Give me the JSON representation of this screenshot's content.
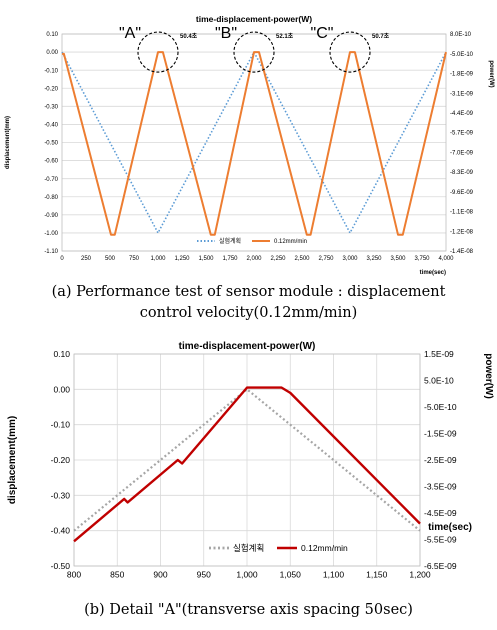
{
  "chart_data": [
    {
      "type": "line",
      "title": "time-displacement-power(W)",
      "xlabel": "time(sec)",
      "ylabel": "displacement(mm)",
      "y2label": "power(W)",
      "xlim": [
        0,
        4000
      ],
      "ylim": [
        -1.1,
        0.1
      ],
      "y2lim": [
        -1.4e-08,
        8e-10
      ],
      "x_ticks": [
        "0",
        "250",
        "500",
        "750",
        "1,000",
        "1,250",
        "1,500",
        "1,750",
        "2,000",
        "2,250",
        "2,500",
        "2,750",
        "3,000",
        "3,250",
        "3,500",
        "3,750",
        "4,000"
      ],
      "y_ticks": [
        "0.10",
        "0.00",
        "-0.10",
        "-0.20",
        "-0.30",
        "-0.40",
        "-0.50",
        "-0.60",
        "-0.70",
        "-0.80",
        "-0.90",
        "-1.00",
        "-1.10"
      ],
      "y2_ticks": [
        "8.0E-10",
        "-5.0E-10",
        "-1.8E-09",
        "-3.1E-09",
        "-4.4E-09",
        "-5.7E-09",
        "-7.0E-09",
        "-8.3E-09",
        "-9.6E-09",
        "-1.1E-08",
        "-1.2E-08",
        "-1.4E-08"
      ],
      "grid": true,
      "legend_position": "bottom-center",
      "series": [
        {
          "name": "실험계획",
          "style": "dotted",
          "color": "#5b9bd5",
          "x": [
            0,
            1000,
            2000,
            3000,
            4000
          ],
          "y": [
            0.0,
            -1.0,
            0.0,
            -1.0,
            0.0
          ]
        },
        {
          "name": "0.12mm/min",
          "style": "solid",
          "color": "#ed7d31",
          "x": [
            0,
            20,
            510,
            550,
            1000,
            1051,
            1550,
            1592,
            2000,
            2052,
            2550,
            2590,
            3000,
            3051,
            3500,
            3550,
            4000
          ],
          "y": [
            -0.01,
            -0.01,
            -1.01,
            -1.01,
            0.0,
            0.0,
            -1.01,
            -1.01,
            0.0,
            0.0,
            -1.01,
            -1.01,
            0.0,
            0.0,
            -1.01,
            -1.01,
            0.0
          ]
        }
      ],
      "annotations": [
        {
          "label": "\"A\"",
          "note": "50.4초",
          "x": 1000,
          "y": 0.0
        },
        {
          "label": "\"B\"",
          "note": "52.1초",
          "x": 2000,
          "y": 0.0
        },
        {
          "label": "\"C\"",
          "note": "50.7초",
          "x": 3000,
          "y": 0.0
        }
      ]
    },
    {
      "type": "line",
      "title": "time-displacement-power(W)",
      "xlabel": "time(sec)",
      "ylabel": "displacement(mm)",
      "y2label": "power(W)",
      "xlim": [
        800,
        1200
      ],
      "ylim": [
        -0.5,
        0.1
      ],
      "y2lim": [
        -6.5e-09,
        1.5e-09
      ],
      "x_ticks": [
        "800",
        "850",
        "900",
        "950",
        "1,000",
        "1,050",
        "1,100",
        "1,150",
        "1,200"
      ],
      "y_ticks": [
        "0.10",
        "0.00",
        "-0.10",
        "-0.20",
        "-0.30",
        "-0.40",
        "-0.50"
      ],
      "y2_ticks": [
        "1.5E-09",
        "5.0E-10",
        "-5.0E-10",
        "-1.5E-09",
        "-2.5E-09",
        "-3.5E-09",
        "-4.5E-09",
        "-5.5E-09",
        "-6.5E-09"
      ],
      "grid": true,
      "legend_position": "bottom-center",
      "series": [
        {
          "name": "실험계획",
          "style": "dotted",
          "color": "#a6a6a6",
          "x": [
            800,
            1000,
            1200
          ],
          "y": [
            -0.4,
            0.0,
            -0.4
          ]
        },
        {
          "name": "0.12mm/min",
          "style": "solid",
          "color": "#c00000",
          "x": [
            800,
            858,
            862,
            920,
            925,
            1000,
            1040,
            1050,
            1200
          ],
          "y": [
            -0.43,
            -0.31,
            -0.32,
            -0.2,
            -0.21,
            0.005,
            0.005,
            -0.01,
            -0.38
          ]
        }
      ]
    }
  ],
  "captions": {
    "a_line1": "(a) Performance test of sensor module : displacement",
    "a_line2": "control velocity(0.12mm/min)",
    "b": "(b) Detail \"A\"(transverse axis spacing 50sec)"
  }
}
